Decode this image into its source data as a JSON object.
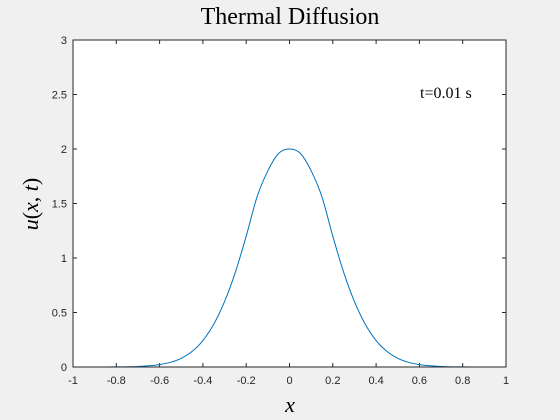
{
  "chart_data": {
    "type": "line",
    "title": "Thermal Diffusion",
    "xlabel": "x",
    "ylabel": {
      "prefix": "u(",
      "var_x": "x",
      "separator": ", ",
      "var_t": "t",
      "suffix": ")"
    },
    "annotation": "t=0.01 s",
    "xlim": [
      -1,
      1
    ],
    "ylim": [
      0,
      3
    ],
    "xticks": [
      -1,
      -0.8,
      -0.6,
      -0.4,
      -0.2,
      0,
      0.2,
      0.4,
      0.6,
      0.8,
      1
    ],
    "xtick_labels": [
      "-1",
      "-0.8",
      "-0.6",
      "-0.4",
      "-0.2",
      "0",
      "0.2",
      "0.4",
      "0.6",
      "0.8",
      "1"
    ],
    "yticks": [
      0,
      0.5,
      1,
      1.5,
      2,
      2.5,
      3
    ],
    "ytick_labels": [
      "0",
      "0.5",
      "1",
      "1.5",
      "2",
      "2.5",
      "3"
    ],
    "grid": false,
    "series": [
      {
        "color": "#0072bd",
        "x": [
          -1,
          -0.9,
          -0.8,
          -0.7,
          -0.65,
          -0.6,
          -0.55,
          -0.5,
          -0.45,
          -0.4,
          -0.35,
          -0.3,
          -0.25,
          -0.2,
          -0.15,
          -0.1,
          -0.05,
          0,
          0.05,
          0.1,
          0.15,
          0.2,
          0.25,
          0.3,
          0.35,
          0.4,
          0.45,
          0.5,
          0.55,
          0.6,
          0.65,
          0.7,
          0.8,
          0.9,
          1
        ],
        "y": [
          0,
          0,
          0.001,
          0.005,
          0.011,
          0.022,
          0.043,
          0.08,
          0.143,
          0.243,
          0.392,
          0.6,
          0.87,
          1.2,
          1.56,
          1.8,
          1.96,
          2.0,
          1.96,
          1.8,
          1.56,
          1.2,
          0.87,
          0.6,
          0.392,
          0.243,
          0.143,
          0.08,
          0.043,
          0.022,
          0.011,
          0.005,
          0.001,
          0,
          0
        ]
      }
    ]
  },
  "colors": {
    "background": "#f0f0f0",
    "axes_background": "#ffffff",
    "axis_line": "#262626",
    "series_line": "#0072bd"
  }
}
